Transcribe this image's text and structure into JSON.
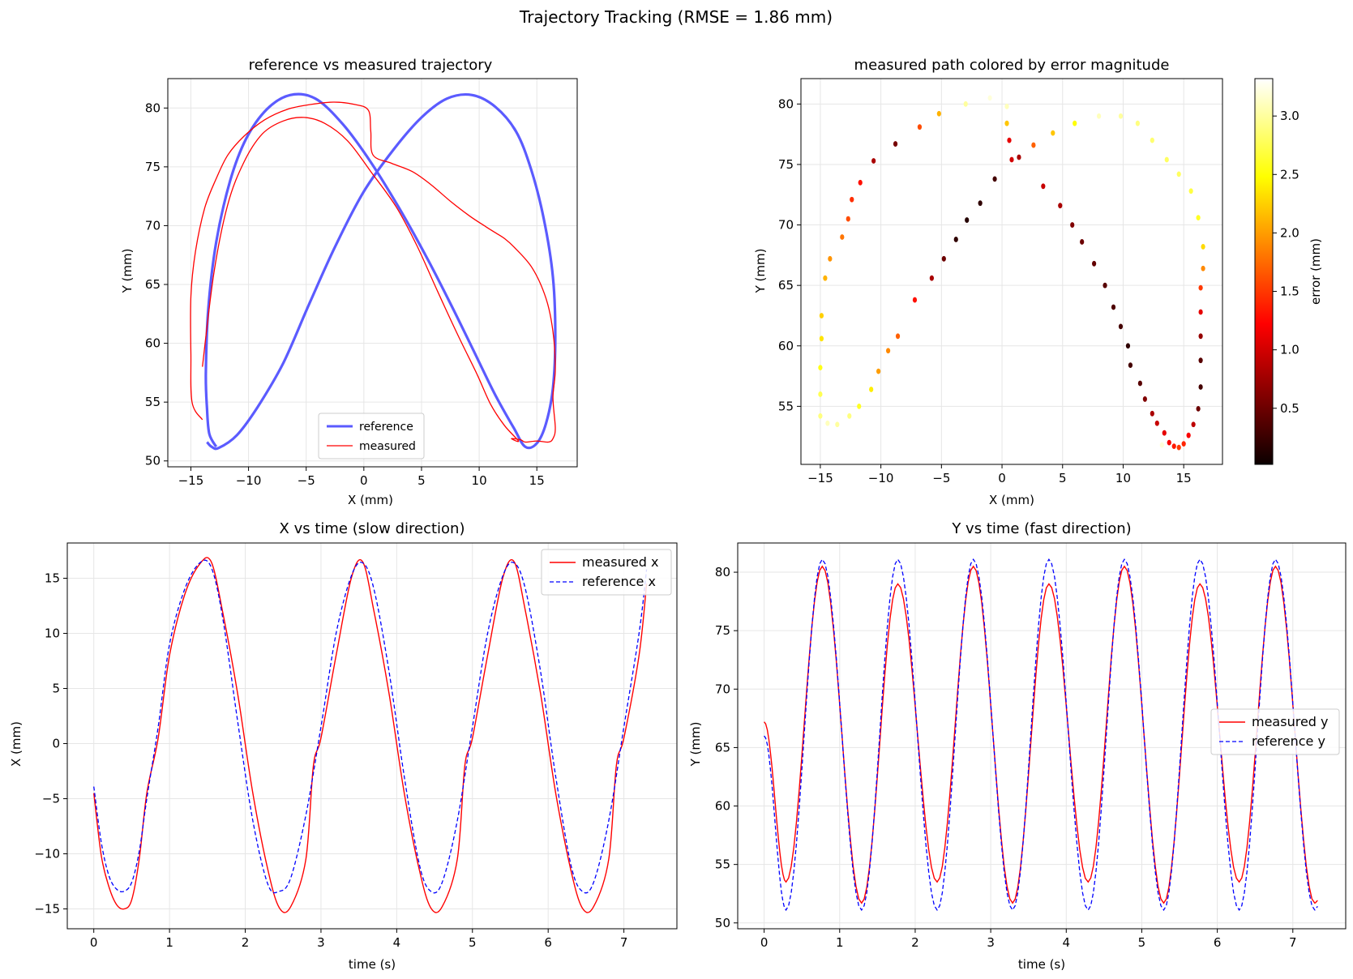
{
  "suptitle": "Trajectory Tracking  (RMSE = 1.86 mm)",
  "colors": {
    "reference_path": "#5b5bff",
    "measured": "#ff0000",
    "reference_time": "#0000ff",
    "grid": "#e6e6e6"
  },
  "chart_data": [
    {
      "id": "xy",
      "type": "line",
      "title": "reference vs measured trajectory",
      "xlabel": "X (mm)",
      "ylabel": "Y (mm)",
      "xlim": [
        -17,
        18.5
      ],
      "ylim": [
        49.5,
        82.5
      ],
      "xticks": [
        -15,
        -10,
        -5,
        0,
        5,
        10,
        15
      ],
      "yticks": [
        50,
        55,
        60,
        65,
        70,
        75,
        80
      ],
      "grid": true,
      "legend": "lower center",
      "series": [
        {
          "name": "reference",
          "x": [
            -13.6,
            -13.2,
            -12.6,
            -11.0,
            -9.2,
            -7.0,
            -4.8,
            -2.5,
            0.0,
            2.6,
            5.0,
            7.2,
            9.4,
            11.4,
            13.2,
            14.5,
            15.6,
            16.4,
            16.6,
            16.4,
            15.8,
            15.0,
            14.0,
            13.0,
            11.4,
            9.6,
            7.6,
            5.4,
            3.0,
            0.6,
            -1.8,
            -4.2,
            -6.4,
            -8.4,
            -10.2,
            -11.6,
            -12.8,
            -13.5,
            -13.7,
            -13.6,
            -13.4,
            -12.8
          ],
          "y": [
            51.6,
            51.2,
            51.1,
            52.2,
            54.6,
            58.3,
            63.2,
            68.2,
            72.9,
            76.5,
            79.2,
            80.8,
            81.1,
            80.1,
            78.0,
            74.8,
            70.6,
            65.6,
            60.6,
            56.2,
            53.2,
            51.5,
            51.2,
            52.8,
            55.6,
            59.2,
            63.2,
            67.4,
            71.6,
            75.4,
            78.6,
            80.8,
            81.1,
            79.9,
            77.4,
            73.8,
            68.6,
            62.8,
            57.4,
            54.4,
            52.3,
            51.2
          ]
        },
        {
          "name": "measured",
          "x": [
            -14.0,
            -14.9,
            -15.0,
            -15.0,
            -14.6,
            -13.8,
            -12.8,
            -11.8,
            -10.4,
            -8.6,
            -6.6,
            -4.6,
            -2.6,
            -0.8,
            0.4,
            0.6,
            0.8,
            2.4,
            4.2,
            5.8,
            7.6,
            9.2,
            10.6,
            11.4,
            12.2,
            13.0,
            14.6,
            15.8,
            16.4,
            16.6,
            16.4,
            16.6,
            16.4,
            16.0,
            15.0,
            14.0,
            13.6,
            12.8,
            13.4,
            12.2,
            11.0,
            9.8,
            8.2,
            6.4,
            4.6,
            2.8,
            0.6,
            -1.4,
            -3.4,
            -5.2,
            -7.0,
            -8.8,
            -10.4,
            -11.8,
            -13.0,
            -14.0
          ],
          "y": [
            53.5,
            55.0,
            59.0,
            64.0,
            67.8,
            71.5,
            74.0,
            76.0,
            77.6,
            79.0,
            79.9,
            80.3,
            80.5,
            80.3,
            79.8,
            78.0,
            76.0,
            75.3,
            74.6,
            73.5,
            72.0,
            70.8,
            69.9,
            69.4,
            68.9,
            68.2,
            66.4,
            63.8,
            61.0,
            57.8,
            55.4,
            52.8,
            51.9,
            51.6,
            51.7,
            51.6,
            51.8,
            51.9,
            51.7,
            53.0,
            54.8,
            57.4,
            60.6,
            64.4,
            68.3,
            71.6,
            74.6,
            77.2,
            78.7,
            79.2,
            78.9,
            77.8,
            75.4,
            71.8,
            66.0,
            58.0
          ]
        }
      ]
    },
    {
      "id": "err",
      "type": "scatter",
      "title": "measured path colored by error magnitude",
      "xlabel": "X (mm)",
      "ylabel": "Y (mm)",
      "xlim": [
        -16.6,
        18.2
      ],
      "ylim": [
        50.2,
        82.1
      ],
      "xticks": [
        -15,
        -10,
        -5,
        0,
        5,
        10,
        15
      ],
      "yticks": [
        55,
        60,
        65,
        70,
        75,
        80
      ],
      "grid": true,
      "colorbar": {
        "label": "error (mm)",
        "range": [
          0.02,
          3.32
        ],
        "ticks": [
          0.5,
          1.0,
          1.5,
          2.0,
          2.5,
          3.0
        ],
        "cmap": "hot"
      },
      "points": [
        {
          "x": -15.0,
          "y": 54.2,
          "e": 2.9
        },
        {
          "x": -15.0,
          "y": 56.0,
          "e": 2.75
        },
        {
          "x": -15.0,
          "y": 58.2,
          "e": 2.55
        },
        {
          "x": -14.9,
          "y": 60.6,
          "e": 2.35
        },
        {
          "x": -14.9,
          "y": 62.5,
          "e": 2.25
        },
        {
          "x": -14.6,
          "y": 65.6,
          "e": 2.1
        },
        {
          "x": -14.2,
          "y": 67.2,
          "e": 1.95
        },
        {
          "x": -13.2,
          "y": 69.0,
          "e": 1.8
        },
        {
          "x": -12.7,
          "y": 70.5,
          "e": 1.6
        },
        {
          "x": -12.4,
          "y": 72.1,
          "e": 1.45
        },
        {
          "x": -11.7,
          "y": 73.5,
          "e": 1.3
        },
        {
          "x": -10.6,
          "y": 75.3,
          "e": 0.8
        },
        {
          "x": -8.8,
          "y": 76.7,
          "e": 0.55
        },
        {
          "x": -6.8,
          "y": 78.1,
          "e": 1.6
        },
        {
          "x": -5.2,
          "y": 79.2,
          "e": 2.1
        },
        {
          "x": -3.0,
          "y": 80.0,
          "e": 3.0
        },
        {
          "x": -1.0,
          "y": 80.5,
          "e": 3.2
        },
        {
          "x": 0.4,
          "y": 79.8,
          "e": 3.1
        },
        {
          "x": 0.4,
          "y": 78.4,
          "e": 2.2
        },
        {
          "x": 0.6,
          "y": 77.0,
          "e": 1.1
        },
        {
          "x": 1.4,
          "y": 75.6,
          "e": 0.8
        },
        {
          "x": 3.4,
          "y": 73.2,
          "e": 0.95
        },
        {
          "x": 4.8,
          "y": 71.6,
          "e": 0.8
        },
        {
          "x": 5.8,
          "y": 70.0,
          "e": 0.6
        },
        {
          "x": 6.6,
          "y": 68.6,
          "e": 0.5
        },
        {
          "x": 7.6,
          "y": 66.8,
          "e": 0.45
        },
        {
          "x": 8.5,
          "y": 65.0,
          "e": 0.4
        },
        {
          "x": 9.2,
          "y": 63.2,
          "e": 0.35
        },
        {
          "x": 9.8,
          "y": 61.6,
          "e": 0.3
        },
        {
          "x": 10.4,
          "y": 60.0,
          "e": 0.2
        },
        {
          "x": 10.6,
          "y": 58.4,
          "e": 0.3
        },
        {
          "x": 11.4,
          "y": 56.9,
          "e": 0.4
        },
        {
          "x": 11.8,
          "y": 55.6,
          "e": 0.6
        },
        {
          "x": 12.4,
          "y": 54.4,
          "e": 0.8
        },
        {
          "x": 12.8,
          "y": 53.6,
          "e": 0.95
        },
        {
          "x": 13.4,
          "y": 52.8,
          "e": 1.1
        },
        {
          "x": 13.8,
          "y": 52.0,
          "e": 1.2
        },
        {
          "x": 14.2,
          "y": 51.7,
          "e": 1.35
        },
        {
          "x": 14.6,
          "y": 51.6,
          "e": 1.5
        },
        {
          "x": 15.0,
          "y": 51.9,
          "e": 1.4
        },
        {
          "x": 15.4,
          "y": 52.6,
          "e": 1.2
        },
        {
          "x": 15.8,
          "y": 53.5,
          "e": 0.9
        },
        {
          "x": 16.2,
          "y": 54.8,
          "e": 0.5
        },
        {
          "x": 16.4,
          "y": 56.6,
          "e": 0.3
        },
        {
          "x": 16.4,
          "y": 58.8,
          "e": 0.4
        },
        {
          "x": 16.4,
          "y": 60.8,
          "e": 0.7
        },
        {
          "x": 16.4,
          "y": 62.8,
          "e": 1.1
        },
        {
          "x": 16.4,
          "y": 64.8,
          "e": 1.5
        },
        {
          "x": 16.6,
          "y": 66.4,
          "e": 1.9
        },
        {
          "x": 16.6,
          "y": 68.2,
          "e": 2.3
        },
        {
          "x": 16.2,
          "y": 70.6,
          "e": 2.6
        },
        {
          "x": 15.6,
          "y": 72.8,
          "e": 2.7
        },
        {
          "x": 14.6,
          "y": 74.2,
          "e": 2.8
        },
        {
          "x": 13.6,
          "y": 75.4,
          "e": 2.8
        },
        {
          "x": 12.4,
          "y": 77.0,
          "e": 2.85
        },
        {
          "x": 11.2,
          "y": 78.4,
          "e": 2.9
        },
        {
          "x": 9.8,
          "y": 79.0,
          "e": 3.0
        },
        {
          "x": 8.0,
          "y": 79.0,
          "e": 3.1
        },
        {
          "x": 6.0,
          "y": 78.4,
          "e": 2.5
        },
        {
          "x": 4.2,
          "y": 77.6,
          "e": 2.2
        },
        {
          "x": 2.6,
          "y": 76.6,
          "e": 1.7
        },
        {
          "x": 0.8,
          "y": 75.4,
          "e": 1.0
        },
        {
          "x": -0.6,
          "y": 73.8,
          "e": 0.3
        },
        {
          "x": -1.8,
          "y": 71.8,
          "e": 0.2
        },
        {
          "x": -2.9,
          "y": 70.4,
          "e": 0.15
        },
        {
          "x": -3.8,
          "y": 68.8,
          "e": 0.2
        },
        {
          "x": -4.8,
          "y": 67.2,
          "e": 0.5
        },
        {
          "x": -5.8,
          "y": 65.6,
          "e": 0.8
        },
        {
          "x": -7.2,
          "y": 63.8,
          "e": 1.3
        },
        {
          "x": -8.6,
          "y": 60.8,
          "e": 1.7
        },
        {
          "x": -9.4,
          "y": 59.6,
          "e": 1.9
        },
        {
          "x": -10.2,
          "y": 57.9,
          "e": 2.0
        },
        {
          "x": -10.8,
          "y": 56.4,
          "e": 2.4
        },
        {
          "x": -11.8,
          "y": 55.0,
          "e": 2.6
        },
        {
          "x": -12.6,
          "y": 54.2,
          "e": 2.9
        },
        {
          "x": -13.6,
          "y": 53.5,
          "e": 3.0
        },
        {
          "x": -14.4,
          "y": 53.6,
          "e": 3.1
        },
        {
          "x": 13.2,
          "y": 51.8,
          "e": 3.2
        }
      ]
    },
    {
      "id": "xt",
      "type": "line",
      "title": "X vs time (slow direction)",
      "xlabel": "time (s)",
      "ylabel": "X (mm)",
      "xlim": [
        -0.35,
        7.7
      ],
      "ylim": [
        -16.8,
        18.2
      ],
      "xticks": [
        0,
        1,
        2,
        3,
        4,
        5,
        6,
        7
      ],
      "yticks": [
        -15,
        -10,
        -5,
        0,
        5,
        10,
        15
      ],
      "grid": true,
      "legend": "upper right",
      "series": [
        {
          "name": "measured x",
          "t": [
            0.0,
            0.1,
            0.2,
            0.3,
            0.4,
            0.5,
            0.6,
            0.7,
            0.85,
            1.0,
            1.2,
            1.4,
            1.55,
            1.7,
            1.9,
            2.1,
            2.3,
            2.45,
            2.6,
            2.8,
            2.9,
            3.0,
            3.2,
            3.4,
            3.55,
            3.7,
            3.9,
            4.1,
            4.3,
            4.45,
            4.6,
            4.8,
            4.9,
            5.0,
            5.2,
            5.4,
            5.55,
            5.7,
            5.9,
            6.1,
            6.3,
            6.45,
            6.6,
            6.8,
            6.9,
            7.0,
            7.2,
            7.3
          ],
          "values": [
            -4.5,
            -10.2,
            -13.0,
            -14.6,
            -15.0,
            -14.2,
            -10.5,
            -4.5,
            0.5,
            8.0,
            13.5,
            16.3,
            16.5,
            12.0,
            4.5,
            -4.5,
            -11.5,
            -14.9,
            -14.8,
            -10.5,
            -2.0,
            0.5,
            8.0,
            15.0,
            16.5,
            12.0,
            4.5,
            -4.5,
            -11.5,
            -14.9,
            -14.8,
            -10.5,
            -2.0,
            0.5,
            8.0,
            15.0,
            16.5,
            12.0,
            4.5,
            -4.5,
            -11.5,
            -14.9,
            -14.8,
            -10.5,
            -2.0,
            0.5,
            8.0,
            14.5
          ]
        },
        {
          "name": "reference x",
          "t": [
            0.0,
            0.1,
            0.2,
            0.3,
            0.4,
            0.5,
            0.6,
            0.7,
            0.85,
            1.0,
            1.2,
            1.4,
            1.55,
            1.7,
            1.9,
            2.1,
            2.3,
            2.45,
            2.6,
            2.8,
            3.0,
            3.2,
            3.4,
            3.55,
            3.7,
            3.9,
            4.1,
            4.3,
            4.45,
            4.6,
            4.8,
            5.0,
            5.2,
            5.4,
            5.55,
            5.7,
            5.9,
            6.1,
            6.3,
            6.45,
            6.6,
            6.8,
            7.0,
            7.2,
            7.3
          ],
          "values": [
            -3.9,
            -9.0,
            -12.0,
            -13.2,
            -13.4,
            -12.6,
            -9.8,
            -5.0,
            1.5,
            9.0,
            14.0,
            16.4,
            16.0,
            11.5,
            2.0,
            -7.0,
            -12.8,
            -13.4,
            -12.2,
            -6.5,
            1.5,
            10.0,
            15.2,
            16.4,
            14.0,
            6.5,
            -3.0,
            -11.0,
            -13.4,
            -12.6,
            -7.0,
            1.5,
            10.0,
            15.2,
            16.4,
            14.0,
            6.5,
            -3.0,
            -11.0,
            -13.4,
            -12.6,
            -7.0,
            1.5,
            10.0,
            15.8
          ]
        }
      ]
    },
    {
      "id": "yt",
      "type": "line",
      "title": "Y vs time (fast direction)",
      "xlabel": "time (s)",
      "ylabel": "Y (mm)",
      "xlim": [
        -0.35,
        7.7
      ],
      "ylim": [
        49.5,
        82.5
      ],
      "xticks": [
        0,
        1,
        2,
        3,
        4,
        5,
        6,
        7
      ],
      "yticks": [
        50,
        55,
        60,
        65,
        70,
        75,
        80
      ],
      "grid": true,
      "legend": "center right",
      "series": [
        {
          "name": "measured y",
          "peaks": [
            80.5,
            79.0,
            80.5,
            79.0,
            80.5,
            79.0,
            80.5
          ],
          "troughs": [
            53.5,
            51.7,
            53.5,
            51.7,
            53.5,
            51.7,
            53.5,
            51.7
          ],
          "start": 67.2,
          "end": 51.9
        },
        {
          "name": "reference y",
          "peaks": [
            81.1,
            81.1,
            81.1,
            81.1,
            81.1,
            81.1,
            81.1
          ],
          "troughs": [
            51.1,
            51.1,
            51.1,
            51.1,
            51.1,
            51.1,
            51.1,
            51.1
          ],
          "start": 66.0,
          "end": 51.4
        }
      ]
    }
  ]
}
